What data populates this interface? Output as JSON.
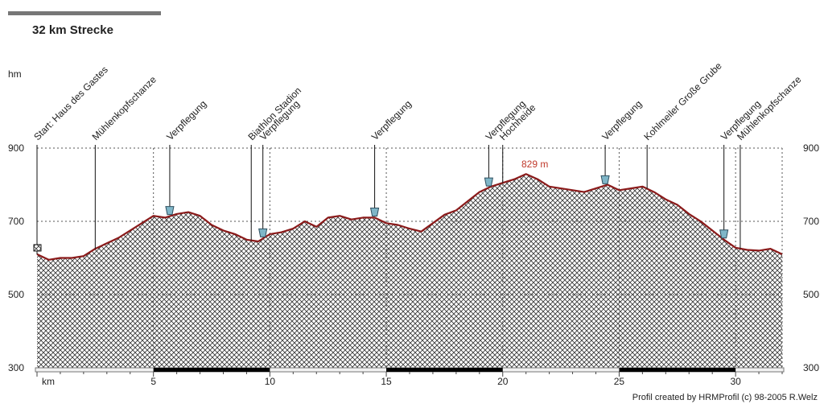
{
  "chart_data": {
    "type": "area",
    "title": "32 km Strecke",
    "ylabel": "hm",
    "xlabel": "km",
    "xlim": [
      0,
      32
    ],
    "ylim": [
      300,
      900
    ],
    "x_ticks": [
      5,
      10,
      15,
      20,
      25,
      30
    ],
    "y_ticks": [
      300,
      500,
      700,
      900
    ],
    "grid": "dotted",
    "max_annotation": {
      "x": 20.6,
      "y": 829,
      "label": "829 m"
    },
    "credit": "Profil created by HRMProfil (c) 98-2005 R.Welz",
    "colors": {
      "line": "#8b1a1a",
      "fill_pattern": "crosshatch",
      "grid": "#555555",
      "annotation": "#c0392b"
    },
    "series": [
      {
        "x": [
          0,
          0.5,
          1,
          1.5,
          2,
          2.5,
          3,
          3.5,
          4,
          4.5,
          5,
          5.5,
          6,
          6.5,
          7,
          7.5,
          8,
          8.5,
          9,
          9.5,
          10,
          10.5,
          11,
          11.5,
          12,
          12.5,
          13,
          13.5,
          14,
          14.5,
          15,
          15.5,
          16,
          16.5,
          17,
          17.5,
          18,
          18.5,
          19,
          19.5,
          20,
          20.5,
          21,
          21.5,
          22,
          22.5,
          23,
          23.5,
          24,
          24.5,
          25,
          25.5,
          26,
          26.5,
          27,
          27.5,
          28,
          28.5,
          29,
          29.5,
          30,
          30.5,
          31,
          31.5,
          32
        ],
        "values": [
          610,
          595,
          600,
          600,
          605,
          625,
          640,
          655,
          675,
          695,
          715,
          710,
          720,
          725,
          715,
          690,
          675,
          665,
          650,
          645,
          665,
          670,
          680,
          700,
          685,
          710,
          715,
          705,
          710,
          710,
          695,
          690,
          680,
          672,
          695,
          718,
          730,
          755,
          780,
          795,
          805,
          815,
          829,
          815,
          795,
          790,
          785,
          780,
          790,
          800,
          785,
          790,
          795,
          780,
          760,
          745,
          720,
          700,
          675,
          650,
          628,
          622,
          620,
          625,
          610
        ]
      }
    ],
    "waypoints": [
      {
        "x": 0,
        "label": "Start: Haus des Gastes",
        "marker": "flag"
      },
      {
        "x": 2.5,
        "label": "Mühlenkopfschanze",
        "marker": "none"
      },
      {
        "x": 5.7,
        "label": "Verpflegung",
        "marker": "cup"
      },
      {
        "x": 9.2,
        "label": "Biathlon Stadion",
        "marker": "none"
      },
      {
        "x": 9.7,
        "label": "Verpflegung",
        "marker": "cup"
      },
      {
        "x": 14.5,
        "label": "Verpflegung",
        "marker": "cup"
      },
      {
        "x": 19.4,
        "label": "Verpflegung",
        "marker": "cup"
      },
      {
        "x": 20.0,
        "label": "Hochheide",
        "marker": "none"
      },
      {
        "x": 24.4,
        "label": "Verpflegung",
        "marker": "cup"
      },
      {
        "x": 26.2,
        "label": "Kohlmeiler Große Grube",
        "marker": "none"
      },
      {
        "x": 29.5,
        "label": "Verpflegung",
        "marker": "cup"
      },
      {
        "x": 30.2,
        "label": "Mühlenkopfschanze",
        "marker": "none"
      }
    ]
  }
}
